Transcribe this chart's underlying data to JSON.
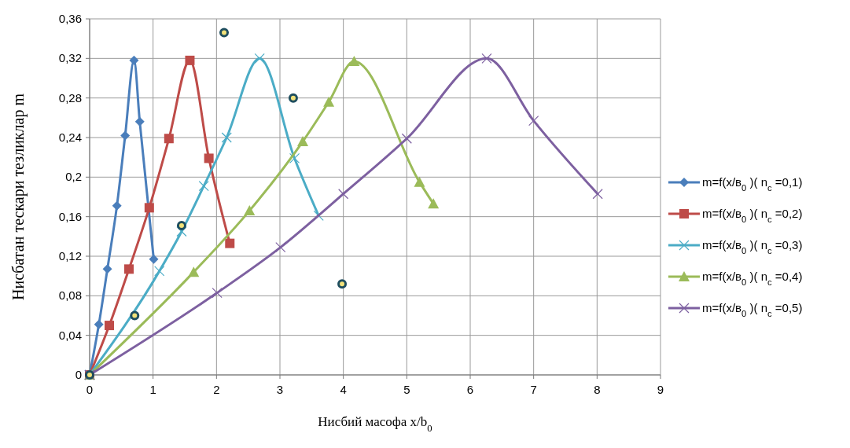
{
  "chart_data": {
    "type": "line",
    "xlabel": "Нисбий масофа  x/b$_{0}$",
    "ylabel": "Нисбатан тескари тезликлар  m",
    "xlim": [
      0,
      9
    ],
    "xticks": [
      0,
      1,
      2,
      3,
      4,
      5,
      6,
      7,
      8,
      9
    ],
    "ylim": [
      0,
      0.36
    ],
    "yticks": [
      {
        "value": 0,
        "label": "0"
      },
      {
        "value": 0.04,
        "label": "0,04"
      },
      {
        "value": 0.08,
        "label": "0,08"
      },
      {
        "value": 0.12,
        "label": "0,12"
      },
      {
        "value": 0.16,
        "label": "0,16"
      },
      {
        "value": 0.2,
        "label": "0,2"
      },
      {
        "value": 0.24,
        "label": "0,24"
      },
      {
        "value": 0.28,
        "label": "0,28"
      },
      {
        "value": 0.32,
        "label": "0,32"
      },
      {
        "value": 0.36,
        "label": "0,36"
      }
    ],
    "grid": true,
    "legend": "right",
    "line_style": "solid",
    "series": [
      {
        "name": "m=f(x/в$_{0}$ )( n$_{c}$ =0,1)",
        "color": "#4a7ebb",
        "marker": "diamond",
        "x": [
          0,
          0.145,
          0.28,
          0.43,
          0.56,
          0.7,
          0.79,
          1.01
        ],
        "values": [
          0,
          0.051,
          0.107,
          0.171,
          0.242,
          0.318,
          0.256,
          0.117
        ]
      },
      {
        "name": "m=f(x/в$_{0}$ )( n$_{c}$ =0,2)",
        "color": "#be4b48",
        "marker": "square",
        "x": [
          0,
          0.31,
          0.62,
          0.94,
          1.25,
          1.58,
          1.88,
          2.21
        ],
        "values": [
          0,
          0.05,
          0.107,
          0.169,
          0.239,
          0.318,
          0.219,
          0.133
        ]
      },
      {
        "name": "m=f(x/в$_{0}$ )( n$_{c}$ =0,3)",
        "color": "#4bacc6",
        "marker": "cross",
        "x": [
          0,
          1.1,
          1.45,
          1.8,
          2.16,
          2.68,
          3.23,
          3.61
        ],
        "values": [
          0,
          0.105,
          0.145,
          0.191,
          0.24,
          0.32,
          0.219,
          0.161
        ]
      },
      {
        "name": "m=f(x/в$_{0}$ )( n$_{c}$ =0,4)",
        "color": "#9bbb59",
        "marker": "triangle",
        "x": [
          0,
          1.64,
          2.52,
          3.36,
          3.77,
          4.17,
          5.2,
          5.42
        ],
        "values": [
          0,
          0.104,
          0.166,
          0.236,
          0.276,
          0.317,
          0.195,
          0.173
        ]
      },
      {
        "name": "m=f(x/в$_{0}$ )( n$_{c}$ =0,5)",
        "color": "#7d60a0",
        "marker": "cross",
        "x": [
          0,
          2.01,
          3.01,
          4,
          5,
          6.26,
          7,
          8.01
        ],
        "values": [
          0,
          0.083,
          0.129,
          0.183,
          0.239,
          0.32,
          0.257,
          0.183
        ]
      },
      {
        "type": "scatter",
        "color": "#1f4e5f",
        "marker": "circle",
        "x": [
          0,
          0.71,
          1.45,
          2.12,
          3.21,
          3.98
        ],
        "values": [
          0,
          0.06,
          0.151,
          0.346,
          0.28,
          0.092
        ]
      }
    ]
  }
}
